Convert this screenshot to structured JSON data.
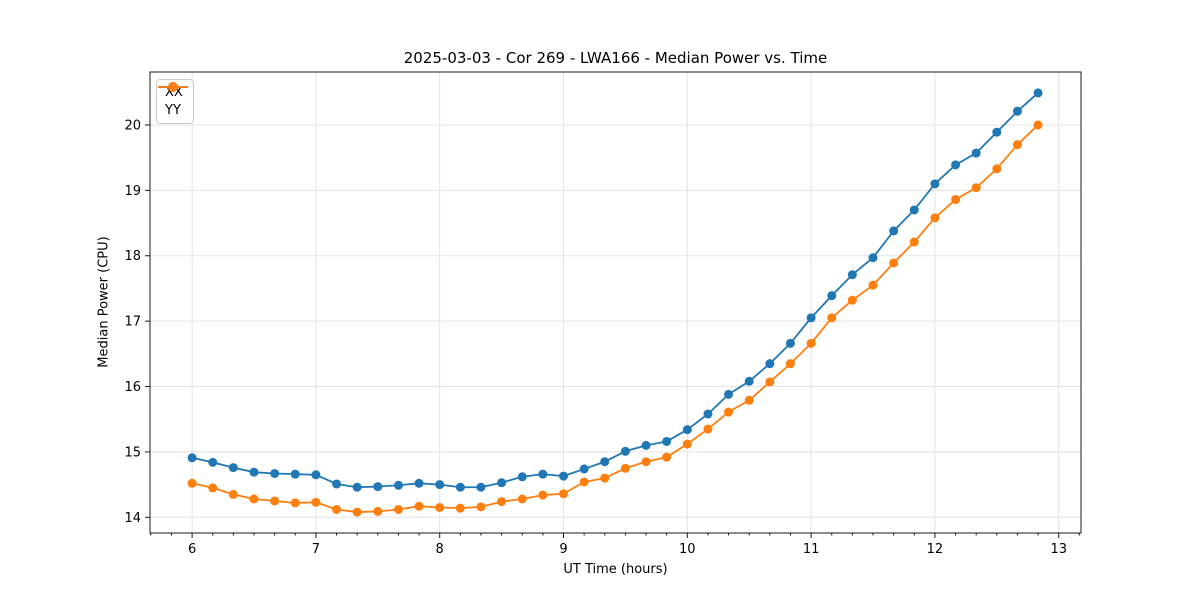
{
  "chart_data": {
    "type": "line",
    "title": "2025-03-03 - Cor 269 - LWA166 - Median Power vs. Time",
    "xlabel": "UT Time (hours)",
    "ylabel": "Median Power (CPU)",
    "xlim": [
      5.66,
      13.18
    ],
    "ylim": [
      13.76,
      20.81
    ],
    "xticks": [
      6,
      7,
      8,
      9,
      10,
      11,
      12,
      13
    ],
    "yticks": [
      14,
      15,
      16,
      17,
      18,
      19,
      20
    ],
    "x_minor_per_major": 6,
    "grid": true,
    "legend_position": "upper-left",
    "x": [
      6.0,
      6.167,
      6.333,
      6.5,
      6.667,
      6.833,
      7.0,
      7.167,
      7.333,
      7.5,
      7.667,
      7.833,
      8.0,
      8.167,
      8.333,
      8.5,
      8.667,
      8.833,
      9.0,
      9.167,
      9.333,
      9.5,
      9.667,
      9.833,
      10.0,
      10.167,
      10.333,
      10.5,
      10.667,
      10.833,
      11.0,
      11.167,
      11.333,
      11.5,
      11.667,
      11.833,
      12.0,
      12.167,
      12.333,
      12.5,
      12.667,
      12.833
    ],
    "series": [
      {
        "name": "XX",
        "color": "#1f77b4",
        "values": [
          14.91,
          14.84,
          14.76,
          14.69,
          14.67,
          14.66,
          14.65,
          14.51,
          14.46,
          14.47,
          14.49,
          14.52,
          14.5,
          14.46,
          14.46,
          14.53,
          14.62,
          14.66,
          14.63,
          14.74,
          14.85,
          15.01,
          15.1,
          15.16,
          15.34,
          15.58,
          15.88,
          16.08,
          16.35,
          16.66,
          17.05,
          17.39,
          17.71,
          17.97,
          18.38,
          18.7,
          19.1,
          19.39,
          19.57,
          19.89,
          20.21,
          20.49
        ]
      },
      {
        "name": "YY",
        "color": "#ff7f0e",
        "values": [
          14.52,
          14.45,
          14.35,
          14.28,
          14.25,
          14.22,
          14.23,
          14.12,
          14.08,
          14.09,
          14.12,
          14.17,
          14.15,
          14.14,
          14.16,
          14.24,
          14.28,
          14.34,
          14.36,
          14.54,
          14.6,
          14.75,
          14.85,
          14.92,
          15.12,
          15.35,
          15.61,
          15.79,
          16.07,
          16.35,
          16.66,
          17.05,
          17.32,
          17.55,
          17.89,
          18.21,
          18.58,
          18.86,
          19.04,
          19.33,
          19.7,
          20.0
        ]
      }
    ],
    "style": {
      "grid_color": "#e3e3e3",
      "spine_color": "#1a1a1a",
      "tick_color": "#1a1a1a",
      "marker_radius": 4.5,
      "line_width": 1.8
    }
  }
}
